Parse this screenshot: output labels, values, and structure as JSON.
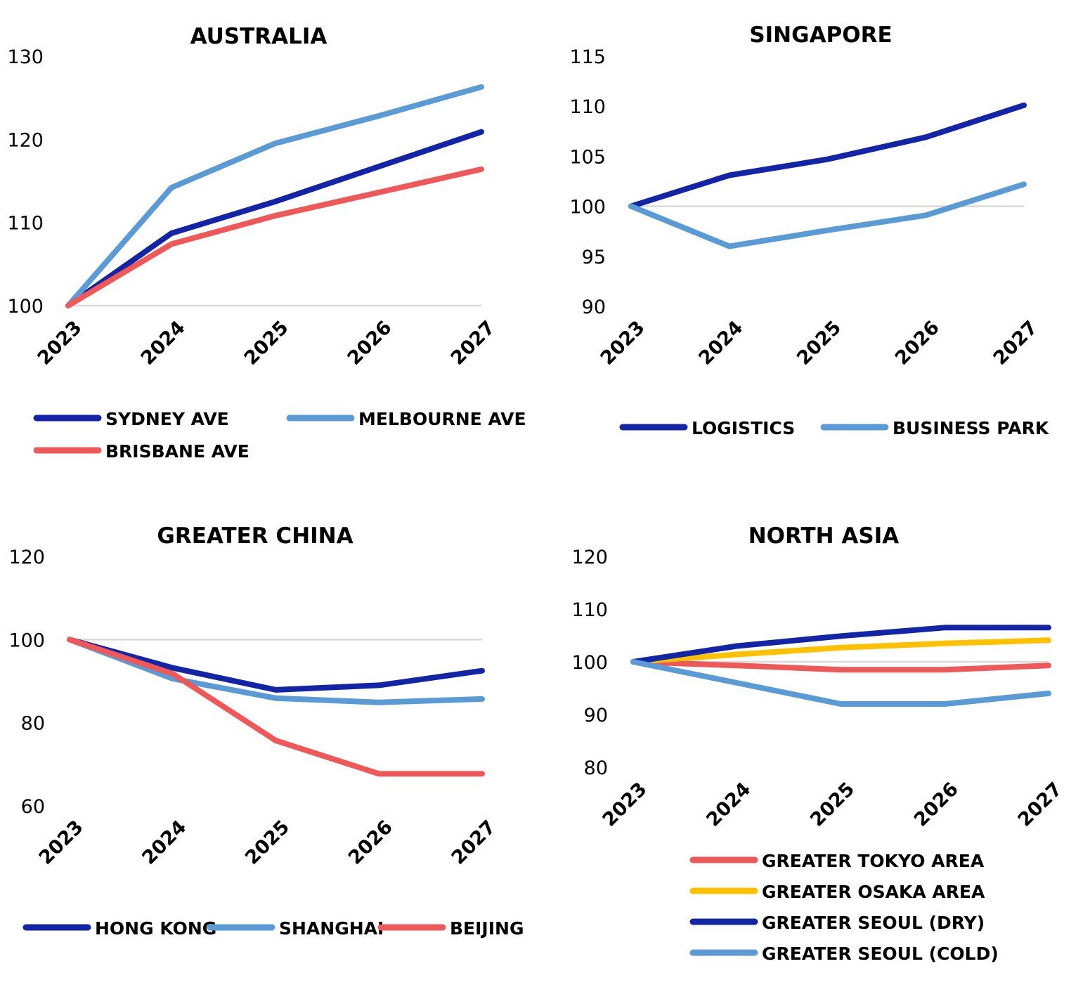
{
  "chart_data": [
    {
      "type": "line",
      "title": "AUSTRALIA",
      "categories": [
        "2023",
        "2024",
        "2025",
        "2026",
        "2027"
      ],
      "ylim": [
        100,
        130
      ],
      "yticks": [
        100,
        110,
        120,
        130
      ],
      "reference_line": 100,
      "series": [
        {
          "name": "SYDNEY AVE",
          "color": "#1325a6",
          "values": [
            100,
            108.7,
            112.5,
            116.7,
            120.9
          ]
        },
        {
          "name": "MELBOURNE AVE",
          "color": "#5b9bd5",
          "values": [
            100,
            114.2,
            119.5,
            122.8,
            126.3
          ]
        },
        {
          "name": "BRISBANE AVE",
          "color": "#ef5859",
          "values": [
            100,
            107.4,
            110.8,
            113.6,
            116.4
          ]
        }
      ],
      "legend": "bottom"
    },
    {
      "type": "line",
      "title": "SINGAPORE",
      "categories": [
        "2023",
        "2024",
        "2025",
        "2026",
        "2027"
      ],
      "ylim": [
        90,
        115
      ],
      "yticks": [
        90,
        95,
        100,
        105,
        110,
        115
      ],
      "reference_line": 100,
      "series": [
        {
          "name": "LOGISTICS",
          "color": "#1325a6",
          "values": [
            100,
            103.1,
            104.7,
            106.9,
            110.1
          ]
        },
        {
          "name": "BUSINESS PARK",
          "color": "#5b9bd5",
          "values": [
            100,
            96.0,
            97.6,
            99.1,
            102.2
          ]
        }
      ],
      "legend": "bottom"
    },
    {
      "type": "line",
      "title": "GREATER CHINA",
      "categories": [
        "2023",
        "2024",
        "2025",
        "2026",
        "2027"
      ],
      "ylim": [
        60,
        120
      ],
      "yticks": [
        60,
        80,
        100,
        120
      ],
      "reference_line": 100,
      "series": [
        {
          "name": "HONG KONG",
          "color": "#1325a6",
          "values": [
            100,
            93.2,
            87.9,
            89.0,
            92.5
          ]
        },
        {
          "name": "SHANGHAI",
          "color": "#5b9bd5",
          "values": [
            100,
            90.6,
            85.9,
            84.9,
            85.7
          ]
        },
        {
          "name": "BEIJING",
          "color": "#ef5859",
          "values": [
            100,
            91.8,
            75.7,
            67.7,
            67.7
          ]
        }
      ],
      "legend": "bottom"
    },
    {
      "type": "line",
      "title": "NORTH ASIA",
      "categories": [
        "2023",
        "2024",
        "2025",
        "2026",
        "2027"
      ],
      "ylim": [
        80,
        120
      ],
      "yticks": [
        80,
        90,
        100,
        110,
        120
      ],
      "reference_line": 100,
      "series": [
        {
          "name": "GREATER TOKYO AREA",
          "color": "#ef5859",
          "values": [
            100,
            99.3,
            98.5,
            98.5,
            99.3
          ]
        },
        {
          "name": "GREATER OSAKA AREA",
          "color": "#ffc000",
          "values": [
            100,
            101.4,
            102.7,
            103.5,
            104.1
          ]
        },
        {
          "name": "GREATER SEOUL (DRY)",
          "color": "#1325a6",
          "values": [
            100,
            103.0,
            104.9,
            106.5,
            106.5
          ]
        },
        {
          "name": "GREATER SEOUL (COLD)",
          "color": "#5b9bd5",
          "values": [
            100,
            96.0,
            92.0,
            92.0,
            94.0
          ]
        }
      ],
      "legend": "bottom"
    }
  ]
}
